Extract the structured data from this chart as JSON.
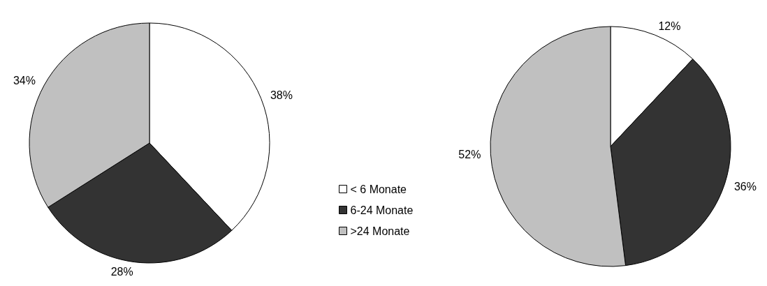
{
  "chart_data": {
    "type": "pie",
    "categories": [
      "< 6 Monate",
      "6-24 Monate",
      ">24 Monate"
    ],
    "colors": [
      "#ffffff",
      "#333333",
      "#c0c0c0"
    ],
    "legend": "bottom",
    "series": [
      {
        "values": [
          38,
          28,
          34
        ],
        "value_labels": [
          "38%",
          "28%",
          "34%"
        ]
      },
      {
        "values": [
          12,
          36,
          52
        ],
        "value_labels": [
          "12%",
          "36%",
          "52%"
        ]
      }
    ]
  }
}
